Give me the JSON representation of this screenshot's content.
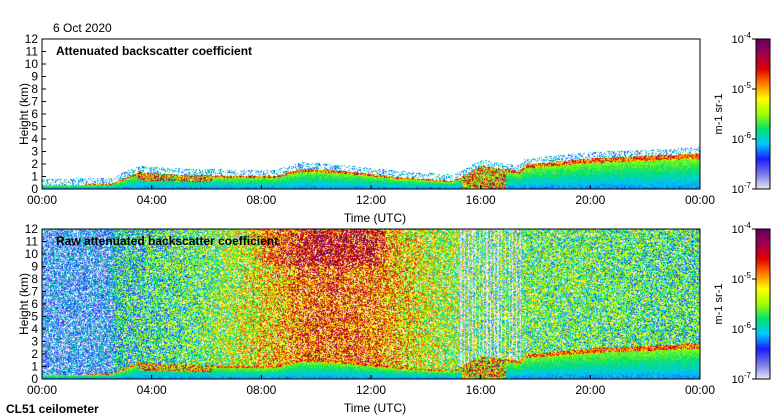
{
  "header": {
    "date": "6 Oct 2020"
  },
  "footer": {
    "instrument": "CL51 ceilometer"
  },
  "colors": {
    "background": "#ffffff",
    "colormap": [
      "#e8e8f8",
      "#7878e8",
      "#1c1cff",
      "#00c8ff",
      "#00e070",
      "#a0ff00",
      "#ffff00",
      "#ff8000",
      "#e00000",
      "#a00050",
      "#600060"
    ],
    "axis": "#000000"
  },
  "chart_data": [
    {
      "type": "heatmap",
      "title": "Attenuated backscatter coefficient",
      "xlabel": "Time (UTC)",
      "ylabel": "Height (km)",
      "xticks": [
        "00:00",
        "04:00",
        "08:00",
        "12:00",
        "16:00",
        "20:00",
        "00:00"
      ],
      "xlim_hours": [
        0,
        24
      ],
      "ylim": [
        0,
        12
      ],
      "yticks": [
        0,
        1,
        2,
        3,
        4,
        5,
        6,
        7,
        8,
        9,
        10,
        11,
        12
      ],
      "colorbar": {
        "label": "m-1 sr-1",
        "scale": "log",
        "min": "10-7",
        "max": "10-4",
        "ticks": [
          "10-4",
          "10-5",
          "10-6",
          "10-7"
        ]
      },
      "layer_top_km": [
        {
          "t": 0,
          "h": 0.3
        },
        {
          "t": 1,
          "h": 0.3
        },
        {
          "t": 2.5,
          "h": 0.35
        },
        {
          "t": 3.5,
          "h": 1.3
        },
        {
          "t": 5,
          "h": 1.1
        },
        {
          "t": 7,
          "h": 1.0
        },
        {
          "t": 8.5,
          "h": 1.0
        },
        {
          "t": 9.5,
          "h": 1.6
        },
        {
          "t": 11,
          "h": 1.4
        },
        {
          "t": 13,
          "h": 0.9
        },
        {
          "t": 15,
          "h": 0.6
        },
        {
          "t": 16,
          "h": 1.8
        },
        {
          "t": 17.4,
          "h": 1.4
        },
        {
          "t": 17.6,
          "h": 1.9
        },
        {
          "t": 20,
          "h": 2.4
        },
        {
          "t": 24,
          "h": 2.8
        }
      ]
    },
    {
      "type": "heatmap",
      "title": "Raw attenuated backscatter coefficient",
      "xlabel": "Time (UTC)",
      "ylabel": "Height (km)",
      "xticks": [
        "00:00",
        "04:00",
        "08:00",
        "12:00",
        "16:00",
        "20:00",
        "00:00"
      ],
      "xlim_hours": [
        0,
        24
      ],
      "ylim": [
        0,
        12
      ],
      "yticks": [
        0,
        1,
        2,
        3,
        4,
        5,
        6,
        7,
        8,
        9,
        10,
        11,
        12
      ],
      "colorbar": {
        "label": "m-1 sr-1",
        "scale": "log",
        "min": "10-7",
        "max": "10-4",
        "ticks": [
          "10-4",
          "10-5",
          "10-6",
          "10-7"
        ]
      },
      "noise_level_by_hour": [
        {
          "t": 0,
          "v": 0.18
        },
        {
          "t": 2.5,
          "v": 0.2
        },
        {
          "t": 2.7,
          "v": 0.35
        },
        {
          "t": 6,
          "v": 0.45
        },
        {
          "t": 8,
          "v": 0.6
        },
        {
          "t": 10,
          "v": 0.75
        },
        {
          "t": 12,
          "v": 0.72
        },
        {
          "t": 14,
          "v": 0.55
        },
        {
          "t": 16,
          "v": 0.45
        },
        {
          "t": 18,
          "v": 0.45
        },
        {
          "t": 22,
          "v": 0.42
        },
        {
          "t": 24,
          "v": 0.4
        }
      ]
    }
  ]
}
